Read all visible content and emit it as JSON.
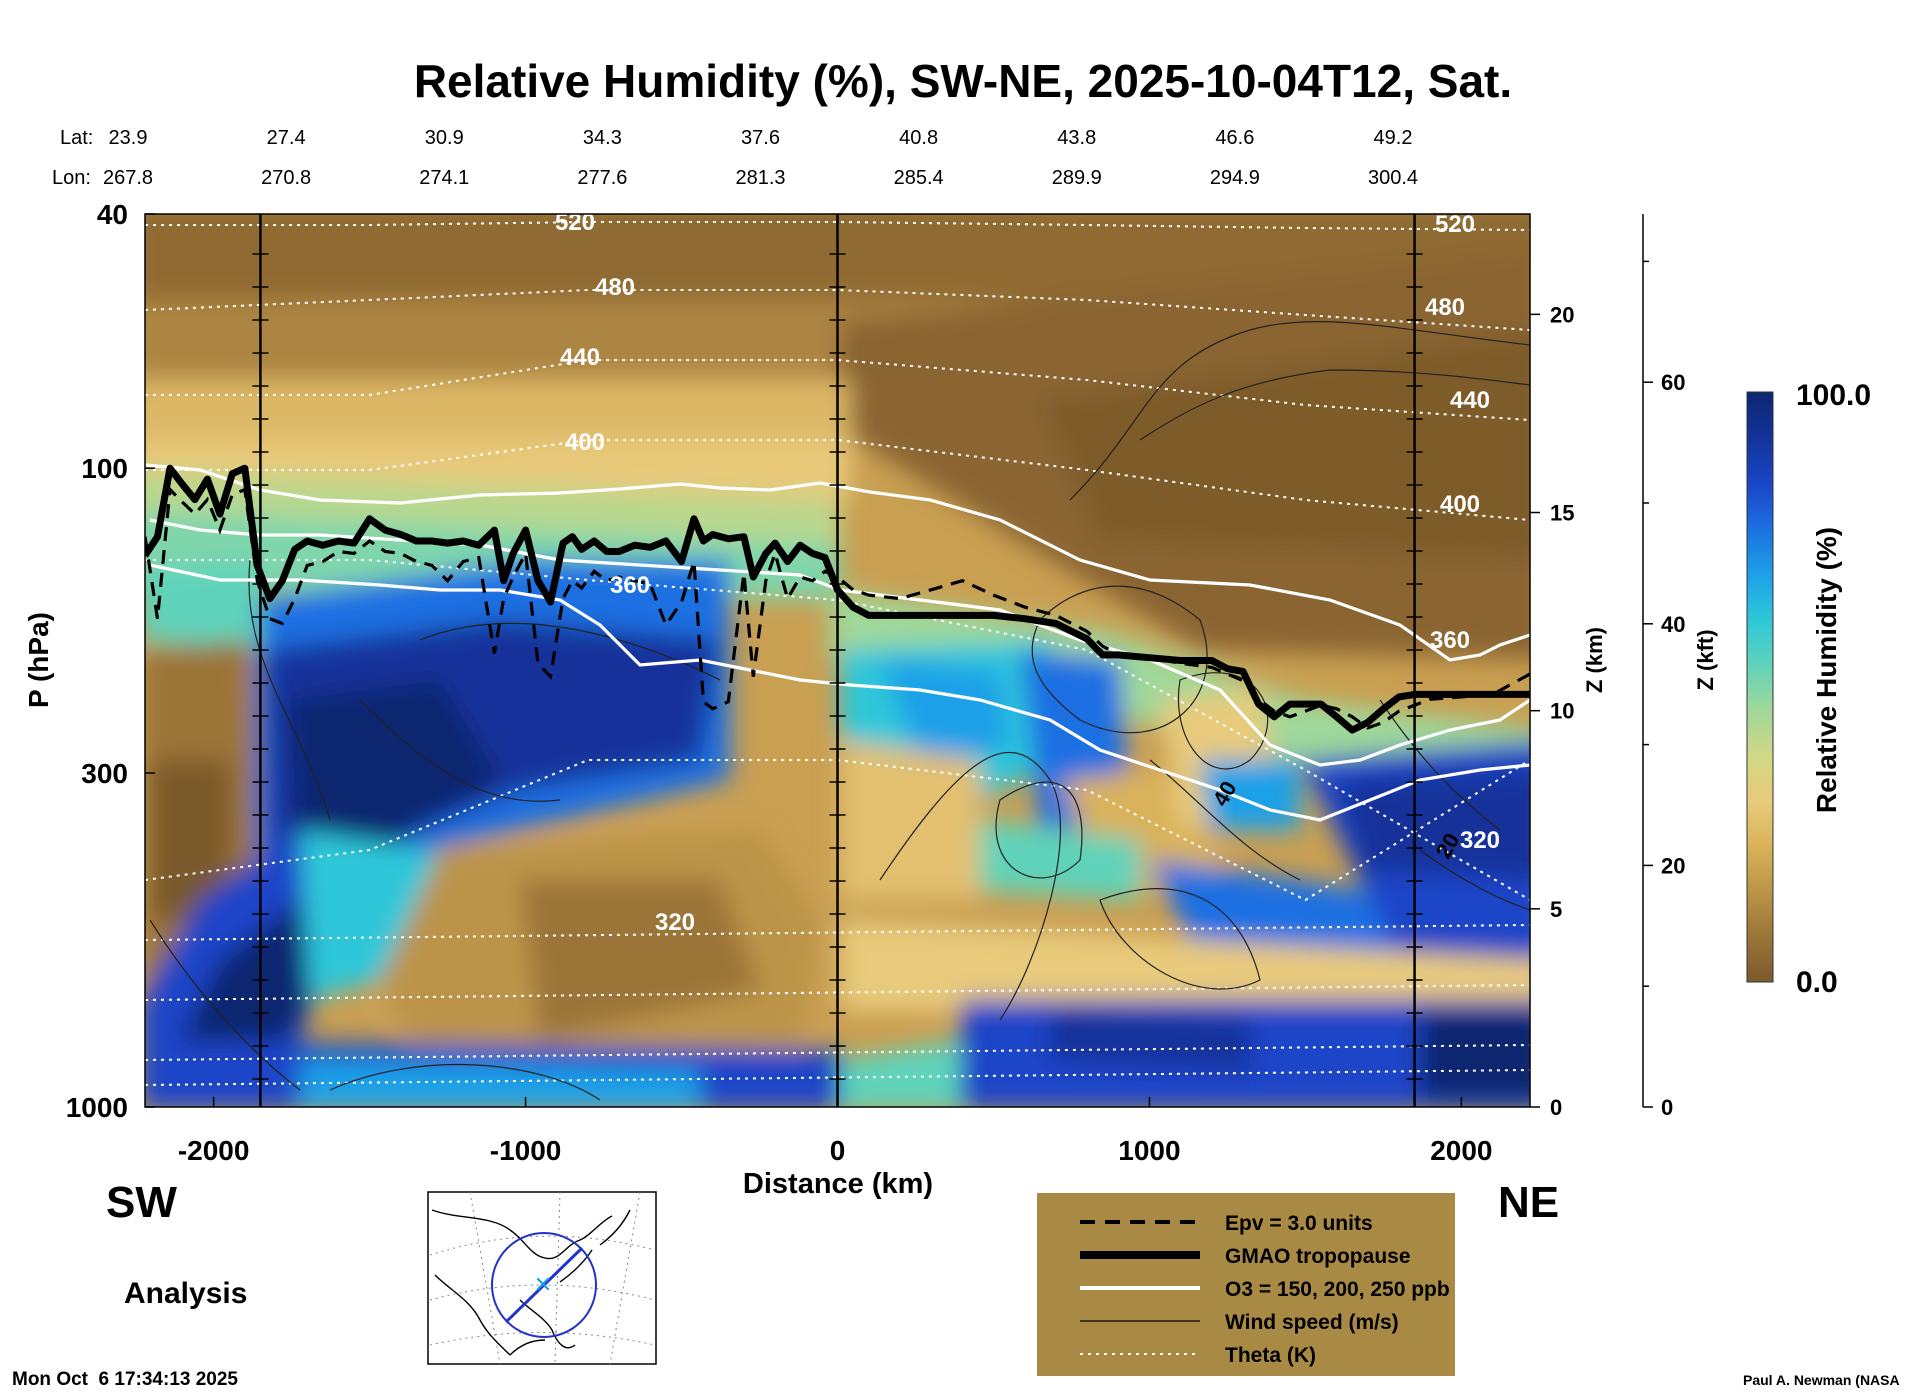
{
  "chart_data": {
    "type": "contour",
    "title": "Relative Humidity (%), SW-NE, 2025-10-04T12, Sat.",
    "xlabel": "Distance (km)",
    "ylabel": "P (hPa)",
    "xlim": [
      -2220,
      2220
    ],
    "ylim": [
      1000,
      40
    ],
    "y_scale": "log",
    "x_ticks": [
      -2000,
      -1000,
      0,
      1000,
      2000
    ],
    "x_tick_labels": [
      "-2000",
      "-1000",
      "0",
      "1000",
      "2000"
    ],
    "y_ticks": [
      40,
      100,
      300,
      1000
    ],
    "y_tick_labels": [
      "40",
      "100",
      "300",
      "1000"
    ],
    "right_axis_km": {
      "label": "Z (km)",
      "ticks": [
        0,
        5,
        10,
        15,
        20
      ],
      "tick_labels": [
        "0",
        "5",
        "10",
        "15",
        "20"
      ],
      "scale_height_km": 7
    },
    "right_axis_kft": {
      "label": "Z (kft)",
      "ticks": [
        0,
        20,
        40,
        60
      ],
      "tick_labels": [
        "0",
        "20",
        "40",
        "60"
      ]
    },
    "lat_label": "Lat:",
    "lon_label": "Lon:",
    "lat_values": [
      "23.9",
      "27.4",
      "30.9",
      "34.3",
      "37.6",
      "40.8",
      "43.8",
      "46.6",
      "49.2"
    ],
    "lon_values": [
      "267.8",
      "270.8",
      "274.1",
      "277.6",
      "281.3",
      "285.4",
      "289.9",
      "294.9",
      "300.4"
    ],
    "direction_left": "SW",
    "direction_right": "NE",
    "colorbar": {
      "label": "Relative Humidity (%)",
      "min_label": "0.0",
      "max_label": "100.0",
      "colors": [
        "#7a5a2c",
        "#9b7438",
        "#bc9448",
        "#d9b25a",
        "#e8cb7c",
        "#cfd886",
        "#9fd89a",
        "#5fd3ba",
        "#2dc7d9",
        "#1da0e8",
        "#1c6fe2",
        "#1a45c8",
        "#13339a",
        "#0d2670"
      ]
    },
    "theta_levels": [
      320,
      360,
      400,
      440,
      480,
      520
    ],
    "wind_labels": [
      "20",
      "40"
    ],
    "vertical_markers_km": [
      -1850,
      0,
      1850
    ],
    "tropopause": {
      "x": [
        -2220,
        -2180,
        -2140,
        -2100,
        -2060,
        -2020,
        -1980,
        -1940,
        -1900,
        -1860,
        -1820,
        -1780,
        -1740,
        -1700,
        -1650,
        -1600,
        -1550,
        -1500,
        -1450,
        -1400,
        -1350,
        -1300,
        -1250,
        -1200,
        -1150,
        -1100,
        -1070,
        -1040,
        -1000,
        -960,
        -920,
        -880,
        -850,
        -820,
        -780,
        -740,
        -700,
        -650,
        -600,
        -550,
        -500,
        -460,
        -430,
        -400,
        -350,
        -300,
        -270,
        -230,
        -200,
        -160,
        -120,
        -80,
        -40,
        0,
        50,
        100,
        200,
        300,
        400,
        500,
        600,
        700,
        800,
        850,
        900,
        1000,
        1100,
        1200,
        1250,
        1300,
        1350,
        1400,
        1450,
        1500,
        1550,
        1600,
        1650,
        1700,
        1750,
        1800,
        1850,
        1900,
        2000,
        2100,
        2220
      ],
      "p": [
        137,
        128,
        100,
        106,
        112,
        104,
        118,
        102,
        100,
        142,
        160,
        150,
        134,
        130,
        132,
        130,
        131,
        120,
        125,
        127,
        130,
        130,
        131,
        130,
        132,
        125,
        150,
        136,
        125,
        150,
        162,
        131,
        128,
        134,
        130,
        135,
        135,
        132,
        133,
        130,
        140,
        120,
        130,
        127,
        129,
        128,
        148,
        136,
        131,
        140,
        132,
        136,
        138,
        155,
        165,
        170,
        170,
        170,
        170,
        170,
        172,
        175,
        185,
        196,
        196,
        198,
        200,
        200,
        206,
        208,
        234,
        245,
        234,
        234,
        234,
        245,
        257,
        250,
        238,
        228,
        226,
        226,
        226,
        226,
        226
      ]
    },
    "epv": {
      "x": [
        -2220,
        -2180,
        -2140,
        -2100,
        -2060,
        -2020,
        -1980,
        -1940,
        -1900,
        -1860,
        -1820,
        -1780,
        -1740,
        -1700,
        -1650,
        -1600,
        -1550,
        -1500,
        -1450,
        -1400,
        -1350,
        -1300,
        -1250,
        -1200,
        -1150,
        -1100,
        -1070,
        -1040,
        -1000,
        -960,
        -920,
        -880,
        -850,
        -820,
        -780,
        -740,
        -700,
        -650,
        -600,
        -550,
        -500,
        -460,
        -430,
        -400,
        -350,
        -300,
        -270,
        -230,
        -200,
        -160,
        -120,
        -80,
        -40,
        0,
        50,
        100,
        200,
        300,
        400,
        500,
        600,
        700,
        800,
        850,
        900,
        1000,
        1100,
        1200,
        1250,
        1300,
        1350,
        1400,
        1450,
        1500,
        1550,
        1600,
        1650,
        1700,
        1750,
        1800,
        1850,
        1900,
        2000,
        2100,
        2220
      ],
      "p": [
        128,
        172,
        108,
        113,
        118,
        112,
        125,
        110,
        108,
        150,
        172,
        175,
        160,
        142,
        140,
        135,
        136,
        130,
        135,
        136,
        140,
        142,
        150,
        140,
        138,
        195,
        160,
        148,
        136,
        202,
        212,
        160,
        150,
        154,
        145,
        150,
        148,
        150,
        152,
        176,
        162,
        140,
        232,
        238,
        232,
        146,
        212,
        150,
        136,
        160,
        148,
        150,
        145,
        148,
        155,
        158,
        160,
        155,
        150,
        158,
        165,
        170,
        180,
        190,
        195,
        198,
        202,
        205,
        210,
        215,
        230,
        240,
        245,
        240,
        235,
        238,
        245,
        255,
        250,
        240,
        235,
        230,
        228,
        226,
        210
      ]
    },
    "legend": [
      {
        "label": "Epv = 3.0 units",
        "style": "dashed"
      },
      {
        "label": "GMAO tropopause",
        "style": "thick"
      },
      {
        "label": "O3 = 150, 200, 250 ppb",
        "style": "white"
      },
      {
        "label": "Wind speed (m/s)",
        "style": "thin"
      },
      {
        "label": "Theta (K)",
        "style": "dotted"
      }
    ],
    "inset_map": "globe with blue circle and blue SW-NE cross-section line over North America",
    "analysis_label": "Analysis",
    "timestamp": "Mon Oct  6 17:34:13 2025",
    "credit": "Paul A. Newman (NASA"
  }
}
